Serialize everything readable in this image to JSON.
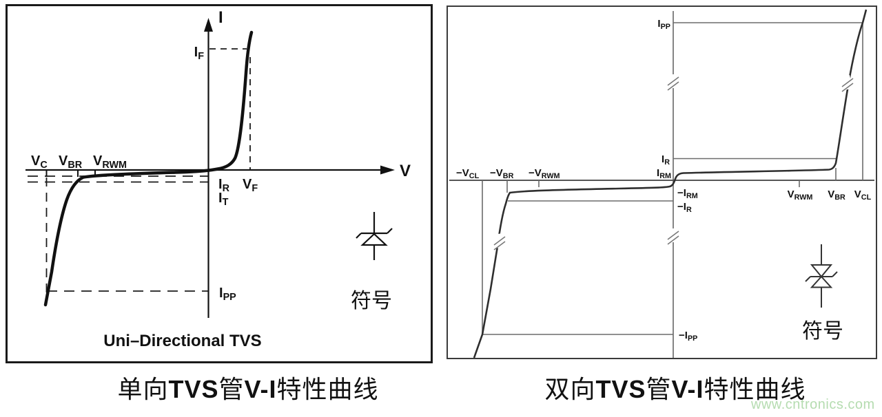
{
  "left_panel": {
    "y_axis_label": "I",
    "x_axis_label": "V",
    "labels": {
      "if": "I_F",
      "vf": "V_F",
      "vc": "V_C",
      "vbr": "V_BR",
      "vrwm": "V_RWM",
      "ir": "I_R",
      "it": "I_T",
      "ipp": "I_PP"
    },
    "title": "Uni–Directional TVS",
    "symbol_label": "符号"
  },
  "right_panel": {
    "labels": {
      "ipp": "I_PP",
      "ir": "I_R",
      "irm": "I_RM",
      "neg_irm": "−I_RM",
      "neg_ir": "−I_R",
      "neg_ipp": "−I_PP",
      "neg_vcl": "−V_CL",
      "neg_vbr": "−V_BR",
      "neg_vrwm": "−V_RWM",
      "vrwm": "V_RWM",
      "vbr": "V_BR",
      "vcl": "V_CL"
    },
    "symbol_label": "符号"
  },
  "captions": {
    "left_parts": [
      "单向",
      "TVS",
      "管",
      "V-I",
      "特性曲线"
    ],
    "right_parts": [
      "双向",
      "TVS",
      "管",
      "V-I",
      "特性曲线"
    ]
  },
  "watermark": {
    "text": "www.cntronics.com",
    "color": "#b5dcb0"
  }
}
